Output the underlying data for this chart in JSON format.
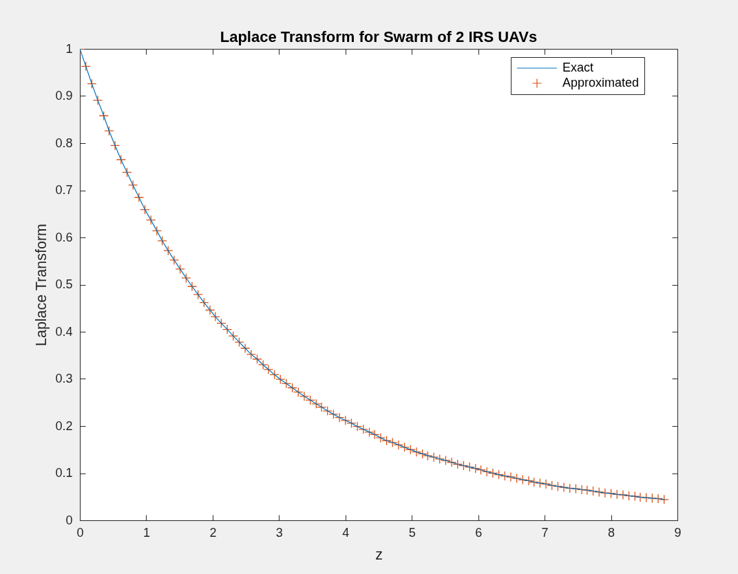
{
  "chart_data": {
    "type": "line",
    "title": "Laplace Transform for Swarm of 2 IRS UAVs",
    "xlabel": "z",
    "ylabel": "Laplace Transform",
    "x": [
      0,
      0.09,
      0.18,
      0.27,
      0.36,
      0.44,
      0.53,
      0.62,
      0.71,
      0.8,
      0.89,
      0.98,
      1.07,
      1.16,
      1.24,
      1.33,
      1.42,
      1.51,
      1.6,
      1.69,
      1.78,
      1.87,
      1.96,
      2.04,
      2.13,
      2.22,
      2.31,
      2.4,
      2.49,
      2.58,
      2.67,
      2.76,
      2.84,
      2.93,
      3.02,
      3.11,
      3.2,
      3.29,
      3.38,
      3.47,
      3.56,
      3.64,
      3.73,
      3.82,
      3.91,
      4,
      4.09,
      4.18,
      4.27,
      4.36,
      4.44,
      4.53,
      4.62,
      4.71,
      4.8,
      4.89,
      4.98,
      5.07,
      5.16,
      5.24,
      5.33,
      5.42,
      5.51,
      5.6,
      5.69,
      5.78,
      5.87,
      5.96,
      6.04,
      6.13,
      6.22,
      6.31,
      6.4,
      6.49,
      6.58,
      6.67,
      6.76,
      6.84,
      6.93,
      7.02,
      7.11,
      7.2,
      7.29,
      7.38,
      7.47,
      7.56,
      7.64,
      7.73,
      7.82,
      7.91,
      8,
      8.09,
      8.18,
      8.27,
      8.36,
      8.44,
      8.53,
      8.62,
      8.71,
      8.8
    ],
    "series": [
      {
        "name": "Exact",
        "color": "#0072bd",
        "values": [
          1,
          0.963,
          0.926,
          0.891,
          0.858,
          0.826,
          0.795,
          0.765,
          0.738,
          0.711,
          0.685,
          0.659,
          0.637,
          0.614,
          0.593,
          0.572,
          0.552,
          0.533,
          0.514,
          0.496,
          0.479,
          0.462,
          0.446,
          0.432,
          0.418,
          0.405,
          0.391,
          0.378,
          0.365,
          0.352,
          0.342,
          0.33,
          0.32,
          0.309,
          0.299,
          0.29,
          0.281,
          0.272,
          0.263,
          0.255,
          0.247,
          0.24,
          0.232,
          0.225,
          0.218,
          0.212,
          0.206,
          0.199,
          0.193,
          0.187,
          0.182,
          0.175,
          0.169,
          0.165,
          0.16,
          0.155,
          0.15,
          0.145,
          0.141,
          0.137,
          0.134,
          0.13,
          0.127,
          0.123,
          0.119,
          0.116,
          0.113,
          0.11,
          0.107,
          0.103,
          0.1,
          0.097,
          0.094,
          0.092,
          0.089,
          0.086,
          0.084,
          0.081,
          0.079,
          0.077,
          0.074,
          0.072,
          0.07,
          0.068,
          0.067,
          0.065,
          0.064,
          0.062,
          0.06,
          0.058,
          0.057,
          0.055,
          0.054,
          0.052,
          0.051,
          0.049,
          0.048,
          0.047,
          0.046,
          0.044
        ]
      },
      {
        "name": "Approximated",
        "type": "scatter",
        "marker": "cross",
        "color": "#d95319",
        "values": [
          1,
          0.963,
          0.926,
          0.891,
          0.858,
          0.826,
          0.795,
          0.765,
          0.738,
          0.711,
          0.685,
          0.659,
          0.637,
          0.614,
          0.593,
          0.572,
          0.552,
          0.533,
          0.514,
          0.496,
          0.479,
          0.462,
          0.446,
          0.432,
          0.418,
          0.405,
          0.391,
          0.378,
          0.365,
          0.352,
          0.342,
          0.33,
          0.32,
          0.309,
          0.299,
          0.29,
          0.281,
          0.272,
          0.263,
          0.255,
          0.247,
          0.24,
          0.232,
          0.225,
          0.218,
          0.212,
          0.206,
          0.199,
          0.193,
          0.187,
          0.182,
          0.175,
          0.169,
          0.165,
          0.16,
          0.155,
          0.15,
          0.145,
          0.141,
          0.137,
          0.134,
          0.13,
          0.127,
          0.123,
          0.119,
          0.116,
          0.113,
          0.11,
          0.107,
          0.103,
          0.1,
          0.097,
          0.094,
          0.092,
          0.089,
          0.086,
          0.084,
          0.081,
          0.079,
          0.077,
          0.074,
          0.072,
          0.07,
          0.068,
          0.067,
          0.065,
          0.064,
          0.062,
          0.06,
          0.058,
          0.057,
          0.055,
          0.054,
          0.052,
          0.051,
          0.049,
          0.048,
          0.047,
          0.046,
          0.044
        ]
      }
    ],
    "xlim": [
      0,
      9
    ],
    "ylim": [
      0,
      1
    ],
    "xticks": [
      0,
      1,
      2,
      3,
      4,
      5,
      6,
      7,
      8,
      9
    ],
    "yticks": [
      0,
      0.1,
      0.2,
      0.3,
      0.4,
      0.5,
      0.6,
      0.7,
      0.8,
      0.9,
      1
    ],
    "legend": "top right",
    "line_style": "solid"
  }
}
